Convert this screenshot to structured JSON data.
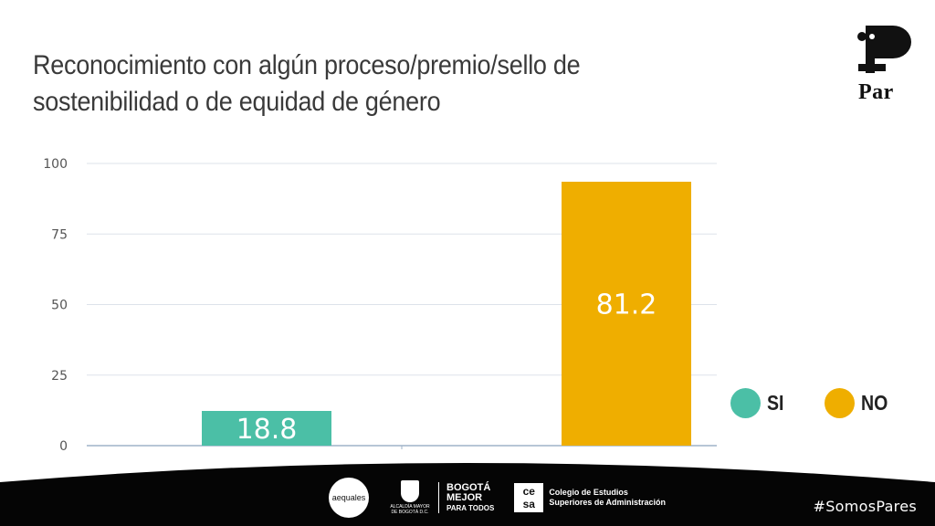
{
  "colors": {
    "si": "#4bbfa6",
    "no": "#efae00",
    "grid": "#dde3ea",
    "axis": "#9fb3c8",
    "footer": "#050505"
  },
  "chart_data": {
    "type": "bar",
    "title": "Reconocimiento con algún proceso/premio/sello de sostenibilidad o de equidad de género",
    "categories": [
      "SI",
      "NO"
    ],
    "values": [
      18.8,
      81.2
    ],
    "data_labels": [
      "18.8",
      "81.2"
    ],
    "ylim": [
      0,
      100
    ],
    "yticks": [
      "0",
      "25",
      "50",
      "75",
      "100"
    ],
    "grid": true,
    "legend": {
      "placement": "right",
      "entries": [
        "SI",
        "NO"
      ]
    }
  },
  "branding": {
    "logo": "Par",
    "footer_logos": {
      "aequales": "aequales",
      "bogota_small": "ALCALDÍA MAYOR DE BOGOTÁ D.C.",
      "bogota_big": [
        "BOGOTÁ",
        "MEJOR",
        "PARA TODOS"
      ],
      "cesa_mark": [
        "ce",
        "sa"
      ],
      "cesa_text": [
        "Colegio de Estudios",
        "Superiores de Administración"
      ]
    },
    "hashtag": "#SomosPares"
  }
}
